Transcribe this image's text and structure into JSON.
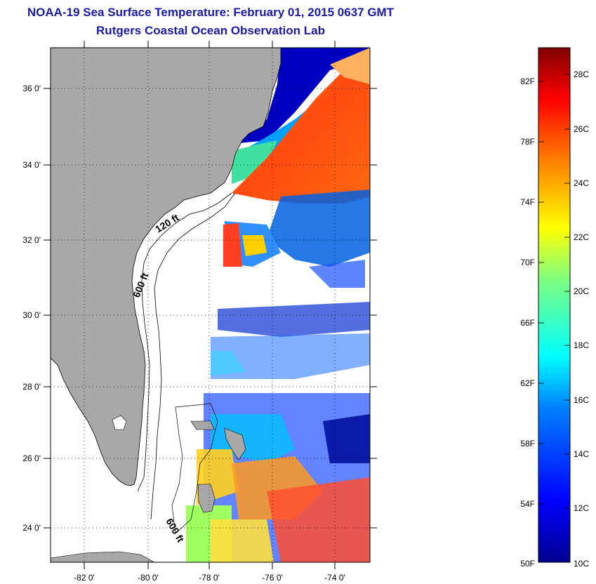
{
  "header": {
    "title": "NOAA-19 Sea Surface Temperature:  February 01, 2015 0637 GMT",
    "subtitle": "Rutgers Coastal Ocean Observation Lab"
  },
  "map": {
    "lat_range": [
      23,
      37
    ],
    "lon_range": [
      -83,
      -73
    ],
    "lat_ticks": [
      {
        "value": 36,
        "label": "36 0'"
      },
      {
        "value": 34,
        "label": "34 0'"
      },
      {
        "value": 32,
        "label": "32 0'"
      },
      {
        "value": 30,
        "label": "30 0'"
      },
      {
        "value": 28,
        "label": "28 0'"
      },
      {
        "value": 26,
        "label": "26 0'"
      },
      {
        "value": 24,
        "label": "24 0'"
      }
    ],
    "lon_ticks": [
      {
        "value": -82,
        "label": "-82 0'"
      },
      {
        "value": -80,
        "label": "-80 0'"
      },
      {
        "value": -78,
        "label": "-78 0'"
      },
      {
        "value": -76,
        "label": "-76 0'"
      },
      {
        "value": -74,
        "label": "-74 0'"
      }
    ],
    "contour_labels": [
      "120 ft",
      "600 ft",
      "600 ft"
    ],
    "colors": {
      "land": "#a8a8a8",
      "ocean_blank": "#ffffff"
    }
  },
  "colorbar": {
    "min_c": 10,
    "max_c": 29,
    "fahrenheit_labels": [
      "82F",
      "78F",
      "74F",
      "70F",
      "66F",
      "62F",
      "58F",
      "54F",
      "50F"
    ],
    "celsius_labels": [
      "28C",
      "26C",
      "24C",
      "22C",
      "20C",
      "18C",
      "16C",
      "14C",
      "12C",
      "10C"
    ],
    "colormap": [
      "#00008f",
      "#0000ff",
      "#0080ff",
      "#00ffff",
      "#80ff80",
      "#ffff00",
      "#ff8000",
      "#ff0000",
      "#800000"
    ]
  }
}
